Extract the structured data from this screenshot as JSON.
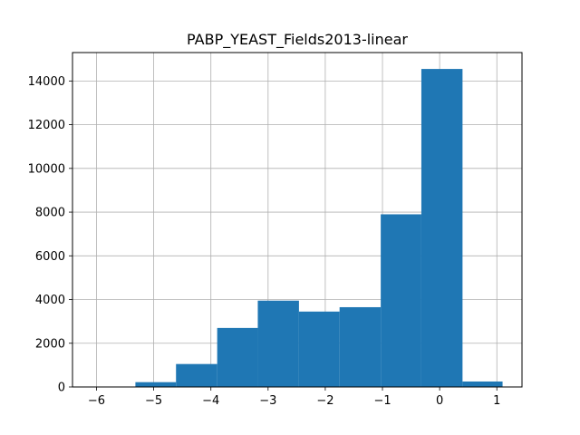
{
  "chart_data": {
    "type": "histogram",
    "title": "PABP_YEAST_Fields2013-linear",
    "xlabel": "",
    "ylabel": "",
    "bins": [
      {
        "x0": -6.06,
        "x1": -5.32,
        "count": 0
      },
      {
        "x0": -5.32,
        "x1": -4.61,
        "count": 220
      },
      {
        "x0": -4.61,
        "x1": -3.89,
        "count": 1050
      },
      {
        "x0": -3.89,
        "x1": -3.18,
        "count": 2700
      },
      {
        "x0": -3.18,
        "x1": -2.46,
        "count": 3950
      },
      {
        "x0": -2.46,
        "x1": -1.75,
        "count": 3450
      },
      {
        "x0": -1.75,
        "x1": -1.03,
        "count": 3650
      },
      {
        "x0": -1.03,
        "x1": -0.32,
        "count": 7900
      },
      {
        "x0": -0.32,
        "x1": 0.4,
        "count": 14550
      },
      {
        "x0": 0.4,
        "x1": 1.1,
        "count": 250
      }
    ],
    "xlim": [
      -6.42,
      1.44
    ],
    "ylim": [
      0,
      15300
    ],
    "xticks": [
      -6,
      -5,
      -4,
      -3,
      -2,
      -1,
      0,
      1
    ],
    "xtick_labels": [
      "−6",
      "−5",
      "−4",
      "−3",
      "−2",
      "−1",
      "0",
      "1"
    ],
    "yticks": [
      0,
      2000,
      4000,
      6000,
      8000,
      10000,
      12000,
      14000
    ],
    "ytick_labels": [
      "0",
      "2000",
      "4000",
      "6000",
      "8000",
      "10000",
      "12000",
      "14000"
    ],
    "grid": true,
    "bar_color": "#1f77b4",
    "grid_color": "#b0b0b0"
  }
}
